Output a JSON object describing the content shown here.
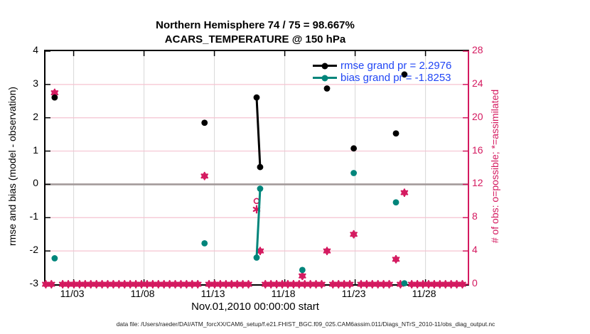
{
  "chart_data": {
    "type": "scatter",
    "title_line1": "Northern Hemisphere 74 / 75 = 98.667%",
    "title_line2": "ACARS_TEMPERATURE @ 150 hPa",
    "x_axis": {
      "label": "Nov.01,2010 00:00:00 start",
      "range_days": [
        1,
        31
      ],
      "ticks": [
        {
          "day": 3,
          "label": "11/03"
        },
        {
          "day": 8,
          "label": "11/08"
        },
        {
          "day": 13,
          "label": "11/13"
        },
        {
          "day": 18,
          "label": "11/18"
        },
        {
          "day": 23,
          "label": "11/23"
        },
        {
          "day": 28,
          "label": "11/28"
        }
      ]
    },
    "left_axis": {
      "label": "rmse and bias (model - observation)",
      "range": [
        -3,
        4
      ],
      "ticks": [
        4,
        3,
        2,
        1,
        0,
        -1,
        -2,
        -3
      ]
    },
    "right_axis": {
      "label": "# of obs: o=possible; *=assimilated",
      "range": [
        0,
        28
      ],
      "ticks": [
        28,
        24,
        20,
        16,
        12,
        8,
        4,
        0
      ]
    },
    "legend": [
      {
        "name": "rmse",
        "label": "rmse grand pr = 2.2976",
        "color": "#000000"
      },
      {
        "name": "bias",
        "label": "bias grand pr = -1.8253",
        "color": "#00857b"
      }
    ],
    "series": {
      "rmse": {
        "color": "#000000",
        "points": [
          [
            1.65,
            2.61
          ],
          [
            12.3,
            1.85
          ],
          [
            16.0,
            2.61
          ],
          [
            16.25,
            0.52
          ],
          [
            21.0,
            2.88
          ],
          [
            22.9,
            1.08
          ],
          [
            25.9,
            1.53
          ],
          [
            26.5,
            3.3
          ]
        ],
        "segments": [
          [
            [
              16.0,
              2.61
            ],
            [
              16.25,
              0.52
            ]
          ]
        ]
      },
      "bias": {
        "color": "#00857b",
        "points": [
          [
            1.65,
            -2.22
          ],
          [
            12.3,
            -1.77
          ],
          [
            16.0,
            -2.2
          ],
          [
            16.25,
            -0.13
          ],
          [
            19.25,
            -2.57
          ],
          [
            22.9,
            0.34
          ],
          [
            25.9,
            -0.54
          ],
          [
            26.5,
            -2.97
          ]
        ],
        "segments": [
          [
            [
              16.0,
              -2.2
            ],
            [
              16.25,
              -0.13
            ]
          ]
        ]
      },
      "obs_possible": {
        "marker": "open-circle",
        "points": [
          [
            1.65,
            23
          ],
          [
            12.3,
            13
          ],
          [
            16.0,
            10
          ],
          [
            16.25,
            4
          ],
          [
            19.25,
            1
          ],
          [
            21.0,
            4
          ],
          [
            22.9,
            6
          ],
          [
            25.9,
            3
          ],
          [
            26.5,
            11
          ]
        ]
      },
      "obs_assimilated": {
        "marker": "asterisk",
        "points": [
          [
            1.65,
            23
          ],
          [
            12.3,
            13
          ],
          [
            16.0,
            9
          ],
          [
            16.25,
            4
          ],
          [
            19.25,
            1
          ],
          [
            21.0,
            4
          ],
          [
            22.9,
            6
          ],
          [
            25.9,
            3
          ],
          [
            26.5,
            11
          ]
        ]
      },
      "obs_zero_row": {
        "count": 0,
        "start_day": 1.02,
        "end_day": 30.85,
        "step_day": 0.4,
        "gap_days": [
          [
            1.45,
            1.85
          ],
          [
            12.1,
            12.5
          ],
          [
            15.8,
            16.45
          ],
          [
            19.15,
            19.35
          ],
          [
            20.85,
            21.15
          ],
          [
            22.75,
            23.05
          ],
          [
            25.75,
            26.05
          ],
          [
            26.3,
            26.7
          ]
        ]
      }
    },
    "colors": {
      "obs_pink": "#d4195f",
      "rmse_black": "#000000",
      "bias_teal": "#00857b",
      "legend_text_blue": "#2146f5",
      "zero_line_gray": "#a39a9a",
      "grid_horizontal_pink": "#f5c3d1",
      "grid_vertical_gray": "#d8d8d8",
      "right_spine_pink": "#d4195f"
    },
    "footer": "data file: /Users/raeder/DAI/ATM_forcXX/CAM6_setup/f.e21.FHIST_BGC.f09_025.CAM6assim.011/Diags_NTrS_2010-11/obs_diag_output.nc"
  }
}
